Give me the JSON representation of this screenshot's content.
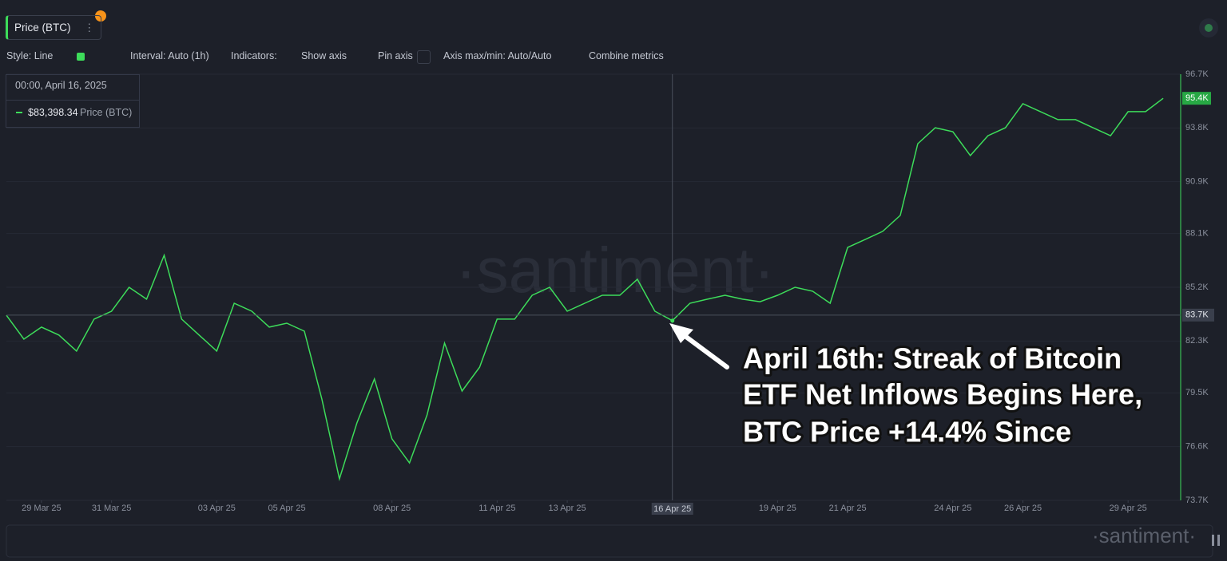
{
  "metric_button": "Price (BTC)",
  "toolbar": {
    "style": "Style: Line",
    "interval": "Interval: Auto (1h)",
    "indicators": "Indicators:",
    "show_axis": "Show axis",
    "pin_axis": "Pin axis",
    "axis_minmax": "Axis max/min: Auto/Auto",
    "combine": "Combine metrics"
  },
  "tooltip": {
    "time": "00:00, April 16, 2025",
    "value": 83398.34,
    "value_label": "$83,398.34"
  },
  "watermark": "·santiment·",
  "chart_data": {
    "type": "line",
    "annotation": [
      "April 16th: Streak of Bitcoin",
      "ETF Net Inflows Begins Here,",
      "BTC Price +14.4% Since"
    ],
    "x": [
      "2025-03-28 00:00",
      "2025-03-28 12:00",
      "2025-03-29 00:00",
      "2025-03-29 12:00",
      "2025-03-30 00:00",
      "2025-03-30 12:00",
      "2025-03-31 00:00",
      "2025-03-31 12:00",
      "2025-04-01 00:00",
      "2025-04-01 12:00",
      "2025-04-02 00:00",
      "2025-04-02 12:00",
      "2025-04-03 00:00",
      "2025-04-03 12:00",
      "2025-04-04 00:00",
      "2025-04-04 12:00",
      "2025-04-05 00:00",
      "2025-04-05 12:00",
      "2025-04-06 00:00",
      "2025-04-06 12:00",
      "2025-04-07 00:00",
      "2025-04-07 12:00",
      "2025-04-08 00:00",
      "2025-04-08 12:00",
      "2025-04-09 00:00",
      "2025-04-09 12:00",
      "2025-04-10 00:00",
      "2025-04-10 12:00",
      "2025-04-11 00:00",
      "2025-04-11 12:00",
      "2025-04-12 00:00",
      "2025-04-12 12:00",
      "2025-04-13 00:00",
      "2025-04-13 12:00",
      "2025-04-14 00:00",
      "2025-04-14 12:00",
      "2025-04-15 00:00",
      "2025-04-15 12:00",
      "2025-04-16 00:00",
      "2025-04-16 12:00",
      "2025-04-17 00:00",
      "2025-04-17 12:00",
      "2025-04-18 00:00",
      "2025-04-18 12:00",
      "2025-04-19 00:00",
      "2025-04-19 12:00",
      "2025-04-20 00:00",
      "2025-04-20 12:00",
      "2025-04-21 00:00",
      "2025-04-21 12:00",
      "2025-04-22 00:00",
      "2025-04-22 12:00",
      "2025-04-23 00:00",
      "2025-04-23 12:00",
      "2025-04-24 00:00",
      "2025-04-24 12:00",
      "2025-04-25 00:00",
      "2025-04-25 12:00",
      "2025-04-26 00:00",
      "2025-04-26 12:00",
      "2025-04-27 00:00",
      "2025-04-27 12:00",
      "2025-04-28 00:00",
      "2025-04-28 12:00",
      "2025-04-29 00:00",
      "2025-04-29 12:00",
      "2025-04-30 00:00"
    ],
    "series": [
      {
        "name": "Price (BTC)",
        "color": "#3ddc5a",
        "values": [
          83690,
          82400,
          83050,
          82620,
          81760,
          83480,
          83910,
          85200,
          84560,
          86930,
          83480,
          82620,
          81760,
          84340,
          83910,
          83050,
          83260,
          82830,
          79170,
          74860,
          77880,
          80250,
          77020,
          75720,
          78310,
          82190,
          79600,
          80890,
          83480,
          83480,
          84770,
          85200,
          83910,
          84340,
          84770,
          84770,
          85630,
          83910,
          83398.34,
          84340,
          84560,
          84770,
          84560,
          84420,
          84770,
          85200,
          84990,
          84340,
          87350,
          87780,
          88220,
          89080,
          92950,
          93810,
          93600,
          92310,
          93380,
          93810,
          95110,
          94680,
          94250,
          94250,
          93810,
          93380,
          94680,
          94680,
          95400
        ]
      }
    ],
    "xlim": [
      "2025-03-28 00:00",
      "2025-04-30 12:00"
    ],
    "ylim": [
      73700,
      96700
    ],
    "yticks": [
      {
        "value": 96700,
        "label": "96.7K"
      },
      {
        "value": 93800,
        "label": "93.8K"
      },
      {
        "value": 90900,
        "label": "90.9K"
      },
      {
        "value": 88100,
        "label": "88.1K"
      },
      {
        "value": 85200,
        "label": "85.2K"
      },
      {
        "value": 82300,
        "label": "82.3K"
      },
      {
        "value": 79500,
        "label": "79.5K"
      },
      {
        "value": 76600,
        "label": "76.6K"
      },
      {
        "value": 73700,
        "label": "73.7K"
      }
    ],
    "xticks": [
      {
        "value": "2025-03-29 00:00",
        "label": "29 Mar 25"
      },
      {
        "value": "2025-03-31 00:00",
        "label": "31 Mar 25"
      },
      {
        "value": "2025-04-03 00:00",
        "label": "03 Apr 25"
      },
      {
        "value": "2025-04-05 00:00",
        "label": "05 Apr 25"
      },
      {
        "value": "2025-04-08 00:00",
        "label": "08 Apr 25"
      },
      {
        "value": "2025-04-11 00:00",
        "label": "11 Apr 25"
      },
      {
        "value": "2025-04-13 00:00",
        "label": "13 Apr 25"
      },
      {
        "value": "2025-04-19 00:00",
        "label": "19 Apr 25"
      },
      {
        "value": "2025-04-21 00:00",
        "label": "21 Apr 25"
      },
      {
        "value": "2025-04-24 00:00",
        "label": "24 Apr 25"
      },
      {
        "value": "2025-04-26 00:00",
        "label": "26 Apr 25"
      },
      {
        "value": "2025-04-29 00:00",
        "label": "29 Apr 25"
      }
    ],
    "crosshair_x": {
      "value": "2025-04-16 00:00",
      "label": "16 Apr 25"
    },
    "crosshair_y": {
      "value": 83700,
      "label": "83.7K"
    },
    "last_price": {
      "value": 95400,
      "label": "95.4K"
    },
    "grid": true
  }
}
